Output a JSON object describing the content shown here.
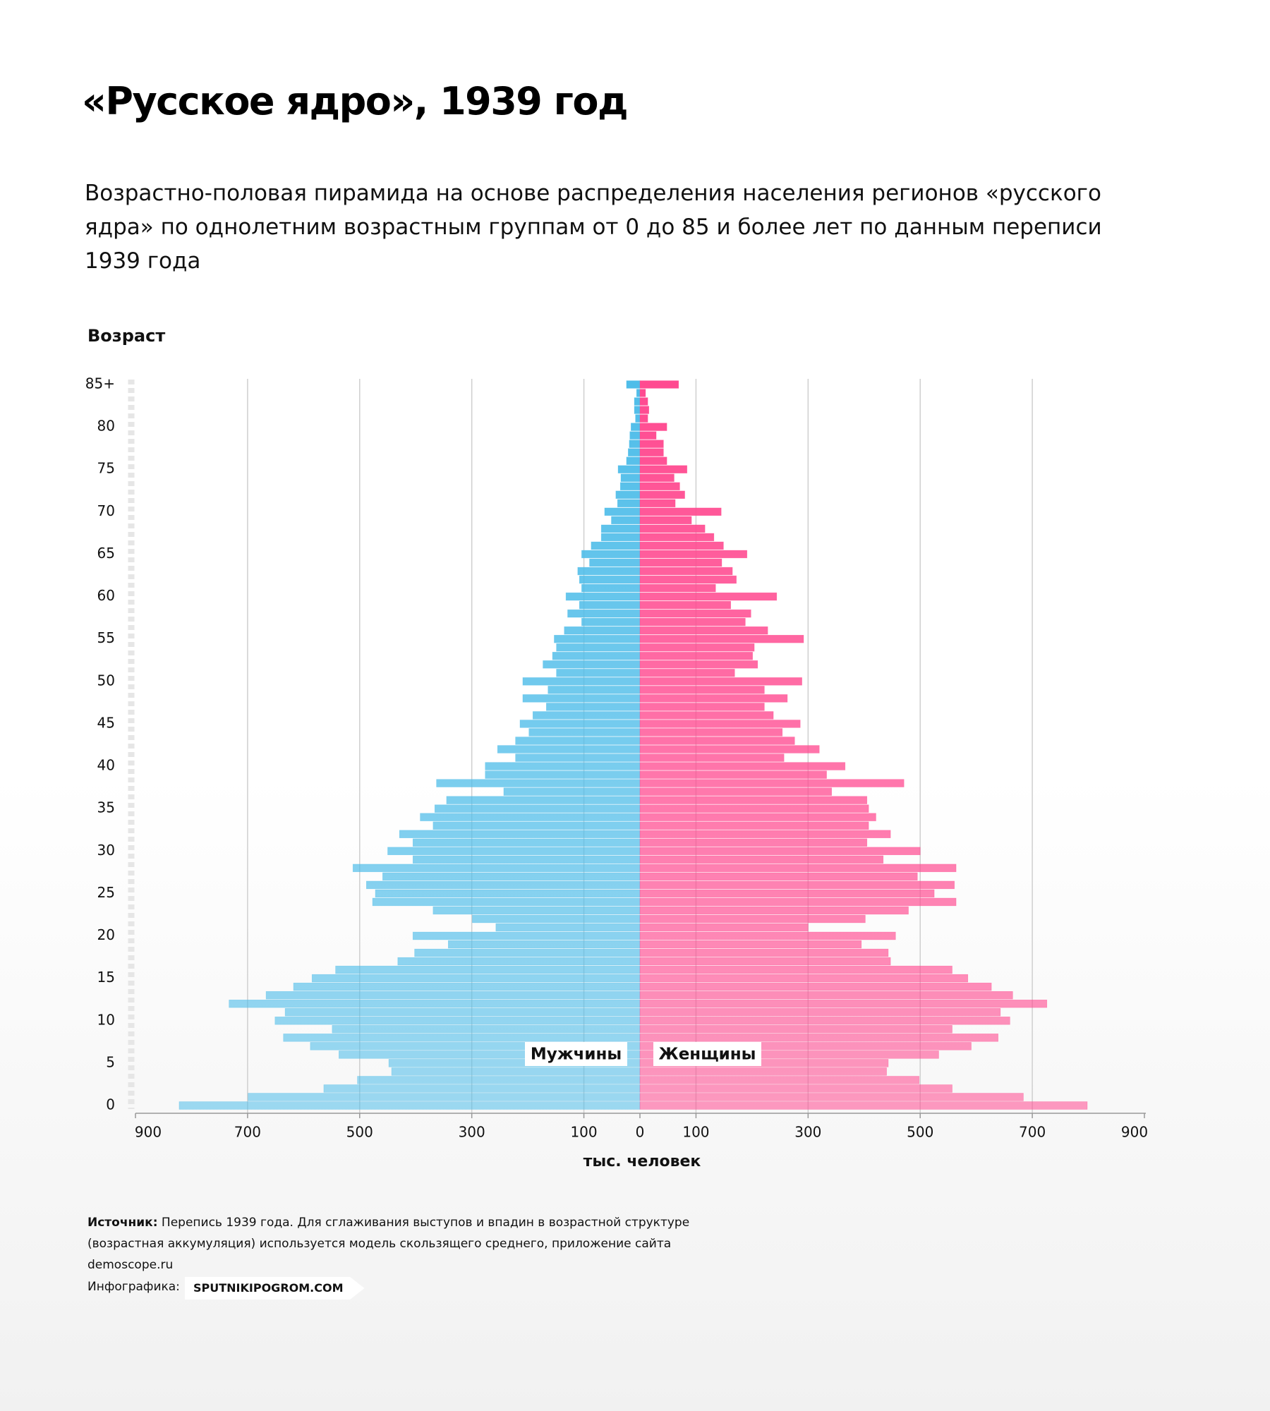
{
  "chart_data": {
    "type": "pyramid",
    "title": "«Русское ядро», 1939 год",
    "subtitle": "Возрастно-половая пирамида на основе распределения населения регионов «русского ядра» по однолетним возрастным группам от 0 до 85 и более лет по данным переписи 1939 года",
    "ylabel": "Возраст",
    "xlabel": "тыс. человек",
    "categories": [
      "0",
      null,
      null,
      null,
      null,
      "5",
      null,
      null,
      null,
      null,
      "10",
      null,
      null,
      null,
      null,
      "15",
      null,
      null,
      null,
      null,
      "20",
      null,
      null,
      null,
      null,
      "25",
      null,
      null,
      null,
      null,
      "30",
      null,
      null,
      null,
      null,
      "35",
      null,
      null,
      null,
      null,
      "40",
      null,
      null,
      null,
      null,
      "45",
      null,
      null,
      null,
      null,
      "50",
      null,
      null,
      null,
      null,
      "55",
      null,
      null,
      null,
      null,
      "60",
      null,
      null,
      null,
      null,
      "65",
      null,
      null,
      null,
      null,
      "70",
      null,
      null,
      null,
      null,
      "75",
      null,
      null,
      null,
      null,
      "80",
      null,
      null,
      null,
      null,
      "85+"
    ],
    "series": [
      {
        "name": "Мужчины",
        "color": "#4fbde9",
        "values": [
          822,
          699,
          564,
          504,
          443,
          448,
          537,
          588,
          636,
          549,
          651,
          633,
          733,
          667,
          618,
          585,
          543,
          432,
          402,
          342,
          405,
          257,
          299,
          369,
          477,
          472,
          488,
          459,
          512,
          405,
          450,
          405,
          429,
          369,
          392,
          366,
          345,
          243,
          363,
          276,
          276,
          222,
          254,
          222,
          198,
          214,
          191,
          167,
          209,
          164,
          209,
          149,
          173,
          156,
          149,
          153,
          135,
          104,
          129,
          108,
          132,
          104,
          108,
          111,
          90,
          104,
          87,
          69,
          69,
          51,
          63,
          40,
          43,
          35,
          34,
          39,
          24,
          21,
          19,
          18,
          16,
          8,
          10,
          10,
          6,
          24
        ]
      },
      {
        "name": "Женщины",
        "color": "#ff4a90",
        "values": [
          798,
          684,
          557,
          498,
          440,
          443,
          533,
          591,
          639,
          557,
          660,
          643,
          726,
          665,
          627,
          585,
          557,
          447,
          443,
          395,
          456,
          300,
          402,
          479,
          564,
          525,
          561,
          495,
          564,
          434,
          500,
          405,
          447,
          408,
          421,
          408,
          405,
          342,
          471,
          333,
          366,
          257,
          320,
          276,
          254,
          286,
          238,
          222,
          263,
          222,
          289,
          169,
          210,
          201,
          204,
          292,
          228,
          188,
          198,
          162,
          244,
          135,
          172,
          165,
          146,
          191,
          149,
          132,
          116,
          92,
          145,
          63,
          80,
          71,
          61,
          84,
          48,
          42,
          42,
          29,
          48,
          14,
          16,
          14,
          10,
          69
        ]
      }
    ],
    "xlim": [
      -900,
      900
    ],
    "xticks": [
      {
        "value": -900,
        "label": "900"
      },
      {
        "value": -700,
        "label": "700"
      },
      {
        "value": -500,
        "label": "500"
      },
      {
        "value": -300,
        "label": "300"
      },
      {
        "value": -100,
        "label": "100"
      },
      0,
      100,
      300,
      500,
      700,
      900
    ],
    "grid": true,
    "source_label": "Источник:",
    "source_text": "Перепись 1939 года. Для сглаживания выступов и впадин в возрастной структуре (возрастная аккумуляция) используется модель скользящего среднего, приложение сайта demoscope.ru",
    "credit_label": "Инфографика:",
    "credit_site": "SPUTNIKIPOGROM.COM"
  }
}
